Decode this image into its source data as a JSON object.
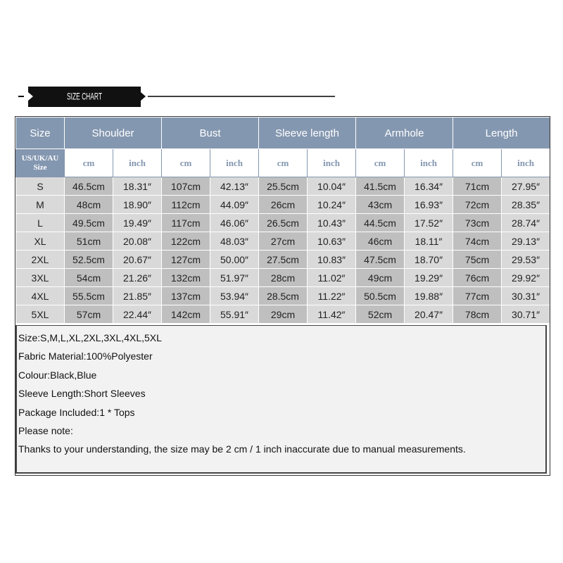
{
  "banner": {
    "title": "SIZE CHART"
  },
  "table": {
    "header": [
      "Size",
      "Shoulder",
      "Bust",
      "Sleeve length",
      "Armhole",
      "Length"
    ],
    "subheader": [
      "US/UK/AU Size",
      "cm",
      "inch",
      "cm",
      "inch",
      "cm",
      "inch",
      "cm",
      "inch",
      "cm",
      "inch"
    ],
    "rows": [
      [
        "S",
        "46.5cm",
        "18.31″",
        "107cm",
        "42.13″",
        "25.5cm",
        "10.04″",
        "41.5cm",
        "16.34″",
        "71cm",
        "27.95″"
      ],
      [
        "M",
        "48cm",
        "18.90″",
        "112cm",
        "44.09″",
        "26cm",
        "10.24″",
        "43cm",
        "16.93″",
        "72cm",
        "28.35″"
      ],
      [
        "L",
        "49.5cm",
        "19.49″",
        "117cm",
        "46.06″",
        "26.5cm",
        "10.43″",
        "44.5cm",
        "17.52″",
        "73cm",
        "28.74″"
      ],
      [
        "XL",
        "51cm",
        "20.08″",
        "122cm",
        "48.03″",
        "27cm",
        "10.63″",
        "46cm",
        "18.11″",
        "74cm",
        "29.13″"
      ],
      [
        "2XL",
        "52.5cm",
        "20.67″",
        "127cm",
        "50.00″",
        "27.5cm",
        "10.83″",
        "47.5cm",
        "18.70″",
        "75cm",
        "29.53″"
      ],
      [
        "3XL",
        "54cm",
        "21.26″",
        "132cm",
        "51.97″",
        "28cm",
        "11.02″",
        "49cm",
        "19.29″",
        "76cm",
        "29.92″"
      ],
      [
        "4XL",
        "55.5cm",
        "21.85″",
        "137cm",
        "53.94″",
        "28.5cm",
        "11.22″",
        "50.5cm",
        "19.88″",
        "77cm",
        "30.31″"
      ],
      [
        "5XL",
        "57cm",
        "22.44″",
        "142cm",
        "55.91″",
        "29cm",
        "11.42″",
        "52cm",
        "20.47″",
        "78cm",
        "30.71″"
      ]
    ]
  },
  "notes": [
    "Size:S,M,L,XL,2XL,3XL,4XL,5XL",
    "Fabric Material:100%Polyester",
    "Colour:Black,Blue",
    "Sleeve Length:Short Sleeves",
    "Package Included:1 * Tops",
    "Please note:",
    "Thanks to your understanding, the size may be 2 cm / 1 inch inaccurate due to manual measurements."
  ]
}
